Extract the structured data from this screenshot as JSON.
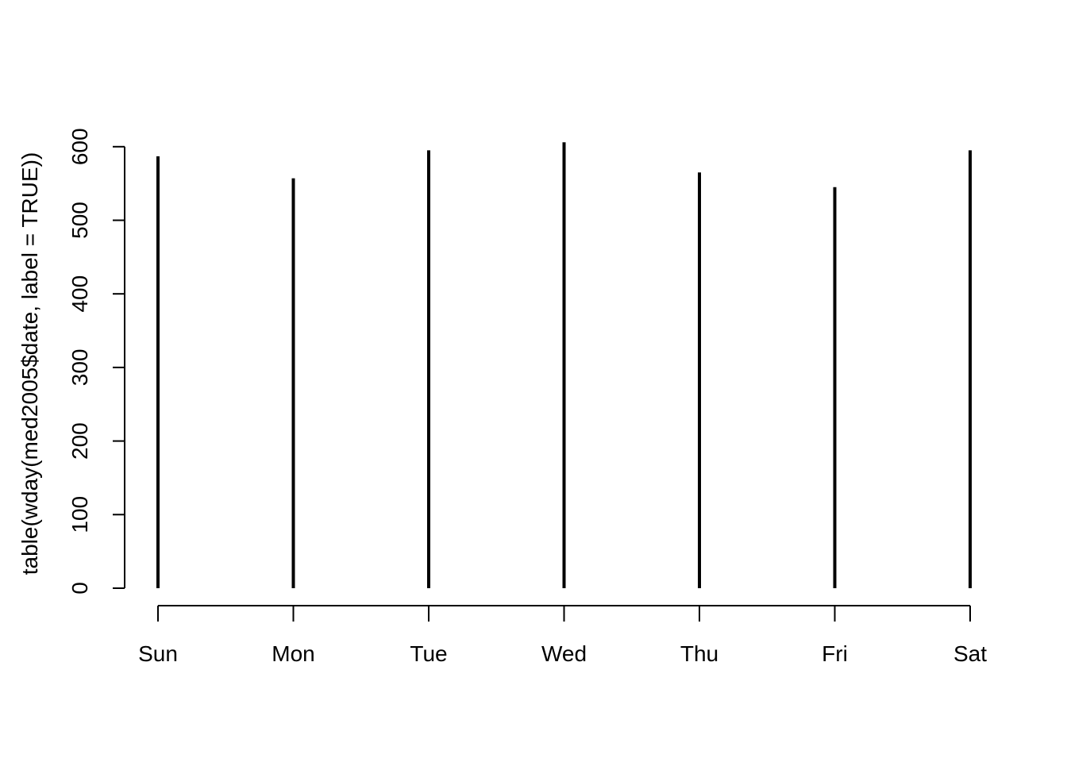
{
  "chart_data": {
    "type": "bar",
    "style": "spike",
    "title": "",
    "xlabel": "",
    "ylabel": "table(wday(med2005$date, label = TRUE))",
    "categories": [
      "Sun",
      "Mon",
      "Tue",
      "Wed",
      "Thu",
      "Fri",
      "Sat"
    ],
    "values": [
      587,
      557,
      595,
      606,
      565,
      545,
      595
    ],
    "ylim": [
      0,
      625
    ],
    "yticks": [
      0,
      100,
      200,
      300,
      400,
      500,
      600
    ],
    "ytick_labels": [
      "0",
      "100",
      "200",
      "300",
      "400",
      "500",
      "600"
    ],
    "grid": false,
    "legend": "none",
    "color": "#000000"
  }
}
